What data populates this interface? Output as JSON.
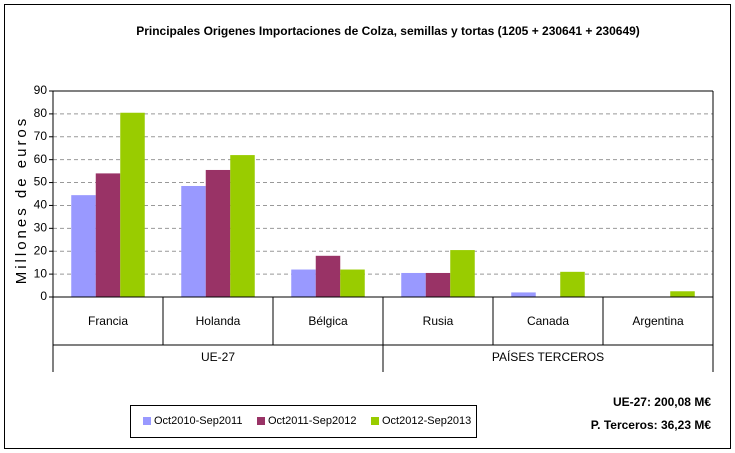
{
  "chart_data": {
    "type": "bar",
    "title": "Principales Origenes Importaciones de Colza, semillas y tortas (1205 + 230641 + 230649)",
    "y_label": "Millones de euros",
    "groups": [
      {
        "name": "UE-27",
        "categories": [
          "Francia",
          "Holanda",
          "Bélgica"
        ]
      },
      {
        "name": "PAÍSES TERCEROS",
        "categories": [
          "Rusia",
          "Canada",
          "Argentina"
        ]
      }
    ],
    "series": [
      {
        "name": "Oct2010-Sep2011",
        "color": "#9999ff",
        "values": [
          44.5,
          48.5,
          12,
          10.5,
          2,
          0
        ]
      },
      {
        "name": "Oct2011-Sep2012",
        "color": "#993366",
        "values": [
          54,
          55.5,
          18,
          10.5,
          0,
          0
        ]
      },
      {
        "name": "Oct2012-Sep2013",
        "color": "#99cc00",
        "values": [
          80.5,
          62,
          12,
          20.5,
          11,
          2.5
        ]
      }
    ],
    "ylim": [
      0,
      90
    ],
    "yticks": [
      0,
      10,
      20,
      30,
      40,
      50,
      60,
      70,
      80,
      90
    ],
    "grid": true,
    "annotations": [
      "UE-27: 200,08 M€",
      "P. Terceros: 36,23 M€"
    ]
  }
}
